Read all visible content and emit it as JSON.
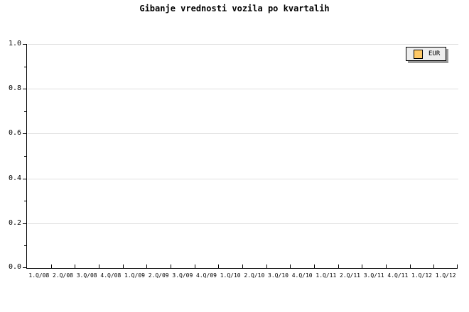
{
  "chart": {
    "title": "Gibanje vrednosti vozila po kvartalih",
    "legend": {
      "label": "EUR",
      "swatch_color": "#FFC966"
    },
    "colors": {
      "text": "#000000",
      "axis": "#000000",
      "gridline": "#DFDFDF",
      "legend_bg": "#EEEEEE",
      "legend_shadow": "#999999",
      "background": "#FFFFFF"
    }
  },
  "chart_data": {
    "type": "line",
    "title": "Gibanje vrednosti vozila po kvartalih",
    "xlabel": "",
    "ylabel": "",
    "categories": [
      "1.Q/08",
      "2.Q/08",
      "3.Q/08",
      "4.Q/08",
      "1.Q/09",
      "2.Q/09",
      "3.Q/09",
      "4.Q/09",
      "1.Q/10",
      "2.Q/10",
      "3.Q/10",
      "4.Q/10",
      "1.Q/11",
      "2.Q/11",
      "3.Q/11",
      "4.Q/11",
      "1.Q/12",
      "1.Q/12"
    ],
    "series": [
      {
        "name": "EUR",
        "values": []
      }
    ],
    "ylim": [
      0.0,
      1.0
    ],
    "y_ticks": [
      0.0,
      0.2,
      0.4,
      0.6,
      0.8,
      1.0
    ],
    "y_tick_labels": [
      "0.0",
      "0.2",
      "0.4",
      "0.6",
      "0.8",
      "1.0"
    ],
    "y_minor_ticks": [
      0.1,
      0.3,
      0.5,
      0.7,
      0.9
    ],
    "grid": "horizontal-major-only",
    "legend_position": "top-right"
  }
}
